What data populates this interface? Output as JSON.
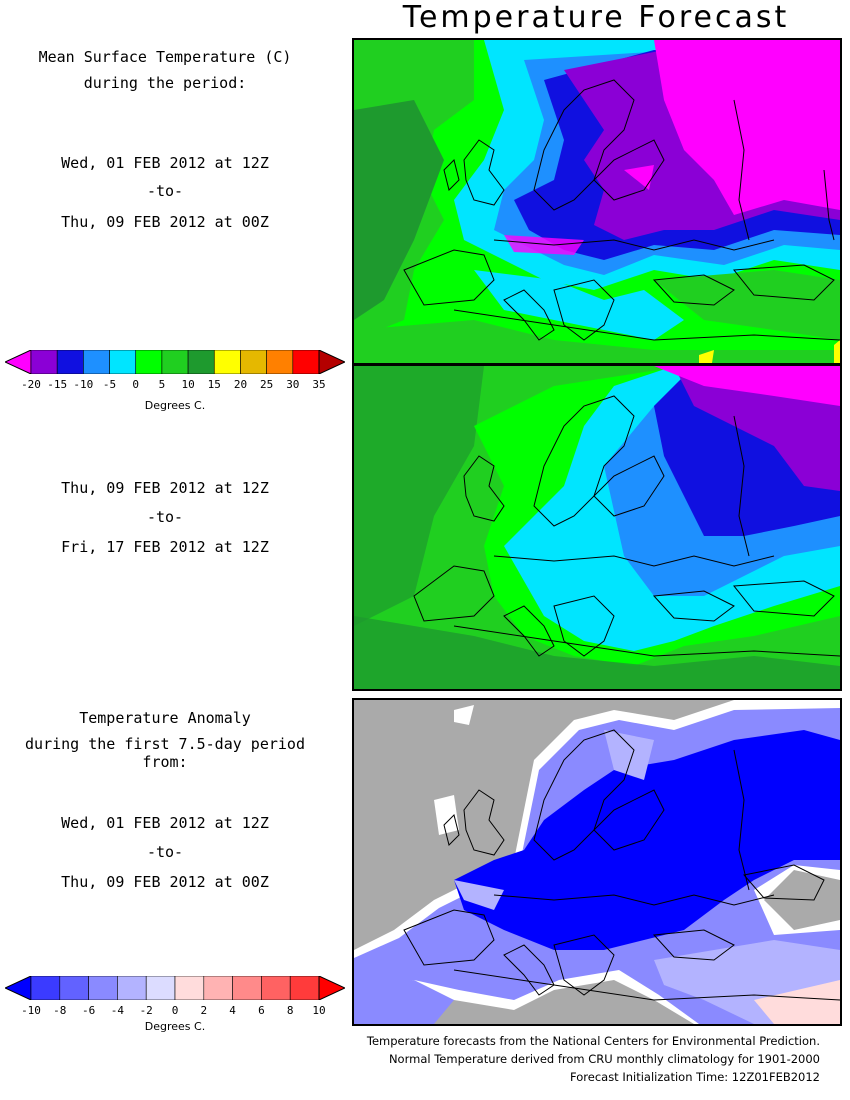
{
  "title": "Temperature Forecast",
  "panel1": {
    "heading_line1": "Mean Surface Temperature (C)",
    "heading_line2": "during the period:",
    "start": "Wed, 01 FEB 2012 at 12Z",
    "to": "-to-",
    "end": "Thu, 09 FEB 2012 at 00Z"
  },
  "panel2": {
    "start": "Thu, 09 FEB 2012 at 12Z",
    "to": "-to-",
    "end": "Fri, 17 FEB 2012 at 12Z"
  },
  "panel3": {
    "heading_line1": "Temperature Anomaly",
    "heading_line2": "during the first 7.5-day period from:",
    "start": "Wed, 01 FEB 2012 at 12Z",
    "to": "-to-",
    "end": "Thu, 09 FEB 2012 at 00Z"
  },
  "temp_colorbar": {
    "ticks": [
      "-20",
      "-15",
      "-10",
      "-5",
      "0",
      "5",
      "10",
      "15",
      "20",
      "25",
      "30",
      "35"
    ],
    "colors": [
      "#ff00ff",
      "#8b00d6",
      "#1010e0",
      "#1e90ff",
      "#00e5ff",
      "#00ff00",
      "#20cf20",
      "#1e9a2e",
      "#ffff00",
      "#e5b800",
      "#ff8000",
      "#ff0000",
      "#b40000"
    ],
    "units": "Degrees C."
  },
  "anom_colorbar": {
    "ticks": [
      "-10",
      "-8",
      "-6",
      "-4",
      "-2",
      "0",
      "2",
      "4",
      "6",
      "8",
      "10"
    ],
    "colors": [
      "#0000ff",
      "#3b3bff",
      "#6262ff",
      "#8a8aff",
      "#b3b3ff",
      "#dcdcff",
      "#ffdcdc",
      "#ffb3b3",
      "#ff8a8a",
      "#ff6262",
      "#ff3b3b",
      "#ff0000"
    ],
    "units": "Degrees C."
  },
  "map_colors": {
    "ocean_green": "#20cf20",
    "bright_green": "#00ff00",
    "dark_green": "#1e9a2e",
    "cyan": "#00e5ff",
    "light_blue": "#1e90ff",
    "blue": "#1010e0",
    "purple": "#8b00d6",
    "magenta": "#ff00ff",
    "anomaly_land_gray": "#aaaaaa",
    "anomaly_deep_blue": "#0000ff",
    "anomaly_light_blue": "#8a8aff"
  },
  "footer": {
    "line1": "Temperature forecasts from the National Centers for Environmental Prediction.",
    "line2": "Normal Temperature derived from CRU monthly climatology for 1901-2000",
    "line3": "Forecast Initialization Time: 12Z01FEB2012"
  }
}
